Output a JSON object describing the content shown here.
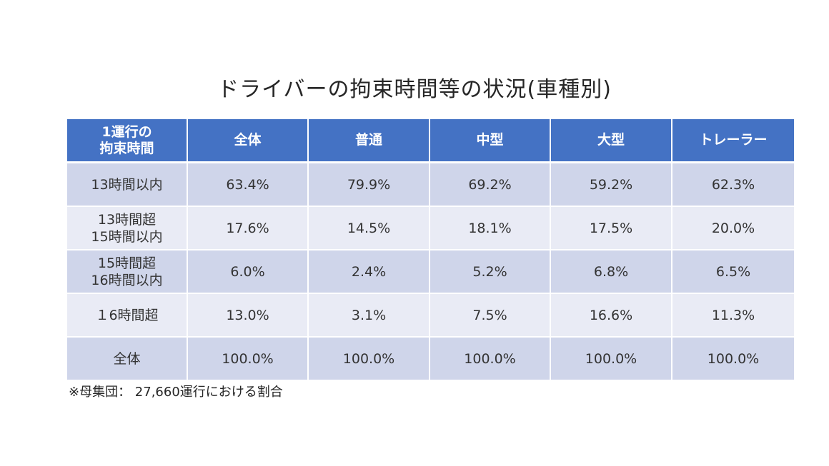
{
  "title": "ドライバーの拘束時間等の状況(車種別)",
  "table": {
    "header_first": [
      "1運行の",
      "拘束時間"
    ],
    "columns": [
      "全体",
      "普通",
      "中型",
      "大型",
      "トレーラー"
    ],
    "rows": [
      {
        "label": [
          "13時間以内"
        ],
        "values": [
          "63.4%",
          "79.9%",
          "69.2%",
          "59.2%",
          "62.3%"
        ]
      },
      {
        "label": [
          "13時間超",
          "15時間以内"
        ],
        "values": [
          "17.6%",
          "14.5%",
          "18.1%",
          "17.5%",
          "20.0%"
        ]
      },
      {
        "label": [
          "15時間超",
          "16時間以内"
        ],
        "values": [
          "6.0%",
          "2.4%",
          "5.2%",
          "6.8%",
          "6.5%"
        ]
      },
      {
        "label": [
          "１6時間超"
        ],
        "values": [
          "13.0%",
          "3.1%",
          "7.5%",
          "16.6%",
          "11.3%"
        ]
      },
      {
        "label": [
          "全体"
        ],
        "values": [
          "100.0%",
          "100.0%",
          "100.0%",
          "100.0%",
          "100.0%"
        ]
      }
    ]
  },
  "footnote": "※母集団： 27,660運行における割合",
  "colors": {
    "header_bg": "#4472c4",
    "row_dark": "#cfd5ea",
    "row_light": "#e9ebf5"
  }
}
